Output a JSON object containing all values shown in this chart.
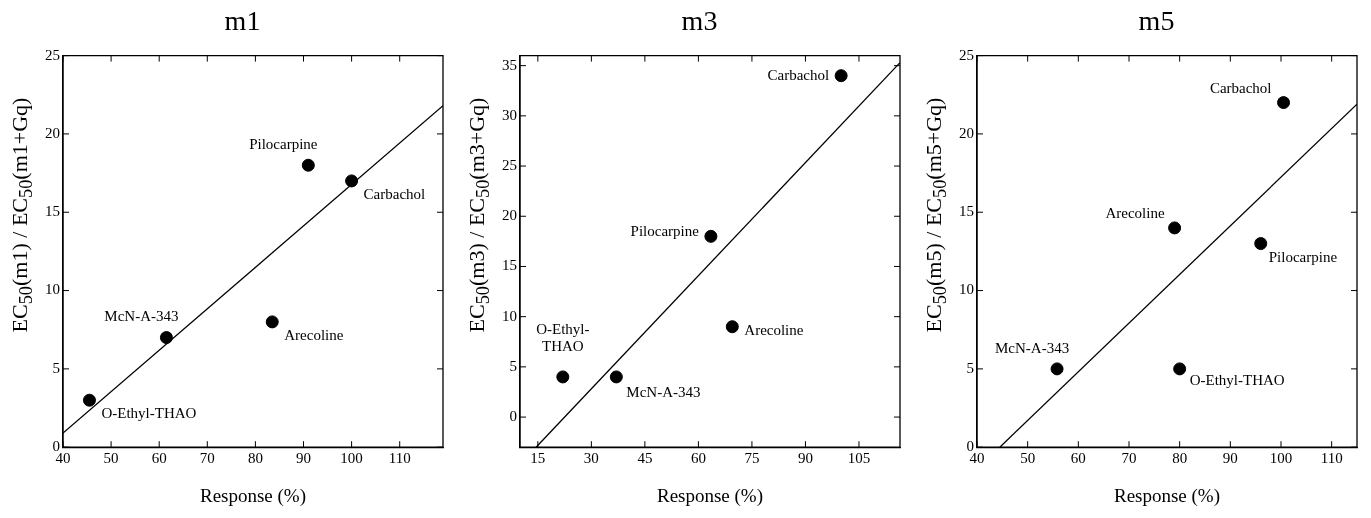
{
  "chart_data": [
    {
      "type": "scatter",
      "title": "m1",
      "xlabel": "Response (%)",
      "ylabel": "EC$_{50}$(m1) / EC$_{50}$(m1+Gq)",
      "xlim": [
        40,
        119
      ],
      "xticks": [
        40,
        50,
        60,
        70,
        80,
        90,
        100,
        110
      ],
      "ylim": [
        0,
        25
      ],
      "yticks": [
        0,
        5,
        10,
        15,
        20,
        25
      ],
      "grid": false,
      "legend": false,
      "marker": "circle",
      "series": [
        {
          "color": "#000000",
          "x": [
            45.5,
            61.5,
            83.5,
            91,
            100
          ],
          "values": [
            3,
            7,
            8,
            18,
            17
          ]
        },
        {
          "type": "line",
          "color": "#000000",
          "x": [
            40,
            119
          ],
          "values": [
            0.9,
            21.8
          ],
          "line_style": "solid",
          "marker": "none"
        }
      ],
      "annotations": [
        {
          "text": "O-Ethyl-THAO",
          "x": 45.5,
          "y": 3
        },
        {
          "text": "McN-A-343",
          "x": 61.5,
          "y": 7
        },
        {
          "text": "Arecoline",
          "x": 83.5,
          "y": 8
        },
        {
          "text": "Pilocarpine",
          "x": 91,
          "y": 18
        },
        {
          "text": "Carbachol",
          "x": 100,
          "y": 17
        }
      ]
    },
    {
      "type": "scatter",
      "title": "m3",
      "xlabel": "Response (%)",
      "ylabel": "EC$_{50}$(m3) / EC$_{50}$(m3+Gq)",
      "xlim": [
        10,
        116.5
      ],
      "xticks": [
        15,
        30,
        45,
        60,
        75,
        90,
        105
      ],
      "ylim": [
        -3,
        36
      ],
      "yticks": [
        0,
        5,
        10,
        15,
        20,
        25,
        30,
        35
      ],
      "grid": false,
      "legend": false,
      "marker": "circle",
      "series": [
        {
          "color": "#000000",
          "x": [
            22,
            37,
            63.5,
            69.5,
            100
          ],
          "values": [
            4,
            4,
            18,
            9,
            34
          ]
        },
        {
          "type": "line",
          "color": "#000000",
          "x": [
            14.5,
            116.5
          ],
          "values": [
            -3,
            35.3
          ],
          "line_style": "solid",
          "marker": "none"
        }
      ],
      "annotations": [
        {
          "text": "O-Ethyl-\nTHAO",
          "x": 22,
          "y": 4
        },
        {
          "text": "McN-A-343",
          "x": 37,
          "y": 4
        },
        {
          "text": "Pilocarpine",
          "x": 63.5,
          "y": 18
        },
        {
          "text": "Arecoline",
          "x": 69.5,
          "y": 9
        },
        {
          "text": "Carbachol",
          "x": 100,
          "y": 34
        }
      ]
    },
    {
      "type": "scatter",
      "title": "m5",
      "xlabel": "Response (%)",
      "ylabel": "EC$_{50}$(m5) / EC$_{50}$(m5+Gq)",
      "xlim": [
        40,
        115
      ],
      "xticks": [
        40,
        50,
        60,
        70,
        80,
        90,
        100,
        110
      ],
      "ylim": [
        0,
        25
      ],
      "yticks": [
        0,
        5,
        10,
        15,
        20,
        25
      ],
      "grid": false,
      "legend": false,
      "marker": "circle",
      "series": [
        {
          "color": "#000000",
          "x": [
            55.8,
            79,
            80,
            96,
            100.5
          ],
          "values": [
            5,
            14,
            5,
            13,
            22
          ]
        },
        {
          "type": "line",
          "color": "#000000",
          "x": [
            44.5,
            115
          ],
          "values": [
            0,
            21.9
          ],
          "line_style": "solid",
          "marker": "none"
        }
      ],
      "annotations": [
        {
          "text": "McN-A-343",
          "x": 55.8,
          "y": 5
        },
        {
          "text": "Arecoline",
          "x": 79,
          "y": 14
        },
        {
          "text": "O-Ethyl-THAO",
          "x": 80,
          "y": 5
        },
        {
          "text": "Pilocarpine",
          "x": 96,
          "y": 13
        },
        {
          "text": "Carbachol",
          "x": 100.5,
          "y": 22
        }
      ]
    }
  ]
}
